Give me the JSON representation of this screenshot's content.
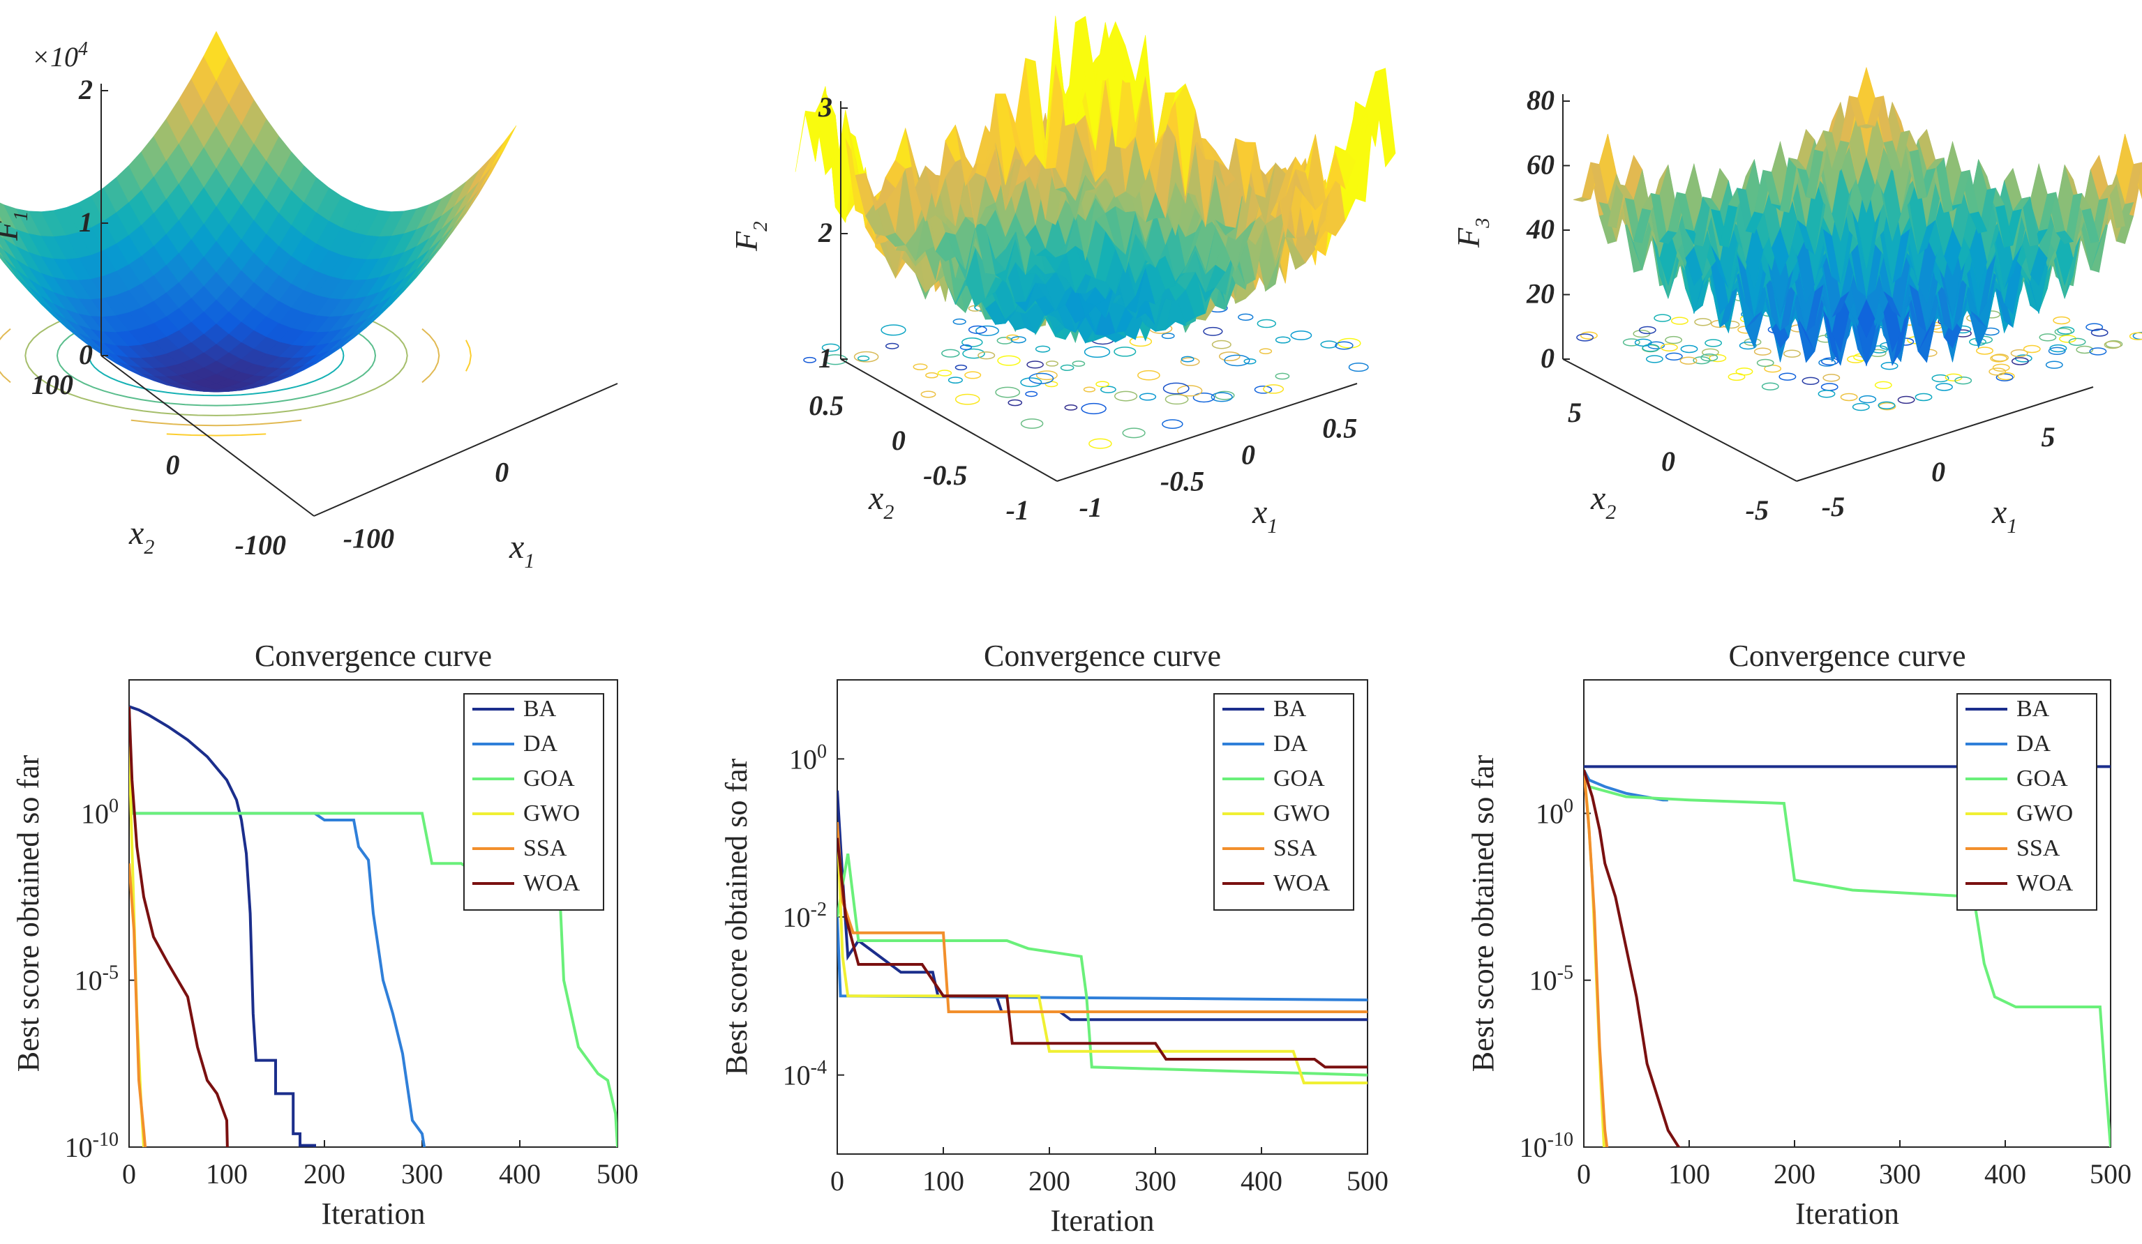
{
  "chart_data": [
    {
      "type": "surface3d",
      "panel": "top-left",
      "zlabel": "F",
      "zlabel_sub": "1",
      "xlabel": "x",
      "xlabel_sub": "1",
      "ylabel": "x",
      "ylabel_sub": "2",
      "multiplier": "×10",
      "multiplier_exp": "4",
      "zticks": [
        "0",
        "1",
        "2"
      ],
      "x1ticks": [
        "-100",
        "0"
      ],
      "x2ticks": [
        "100",
        "0",
        "-100"
      ],
      "function": "sphere"
    },
    {
      "type": "surface3d",
      "panel": "top-middle",
      "zlabel": "F",
      "zlabel_sub": "2",
      "xlabel": "x",
      "xlabel_sub": "1",
      "ylabel": "x",
      "ylabel_sub": "2",
      "zticks": [
        "1",
        "2",
        "3"
      ],
      "x1ticks": [
        "-1",
        "-0.5",
        "0",
        "0.5"
      ],
      "x2ticks": [
        "0.5",
        "0",
        "-0.5",
        "-1"
      ],
      "function": "noisy-quartic"
    },
    {
      "type": "surface3d",
      "panel": "top-right",
      "zlabel": "F",
      "zlabel_sub": "3",
      "xlabel": "x",
      "xlabel_sub": "1",
      "ylabel": "x",
      "ylabel_sub": "2",
      "zticks": [
        "0",
        "20",
        "40",
        "60",
        "80"
      ],
      "x1ticks": [
        "-5",
        "0",
        "5"
      ],
      "x2ticks": [
        "5",
        "0",
        "-5"
      ],
      "function": "rastrigin"
    },
    {
      "type": "line",
      "yscale": "log",
      "title": "Convergence curve",
      "xlabel": "Iteration",
      "ylabel": "Best score obtained so far",
      "xlim": [
        0,
        500
      ],
      "ylim_exp": [
        -10,
        4
      ],
      "xticks": [
        "0",
        "100",
        "200",
        "300",
        "400",
        "500"
      ],
      "yticks": [
        {
          "exp": -10,
          "base": "10",
          "sup": "-10"
        },
        {
          "exp": -5,
          "base": "10",
          "sup": "-5"
        },
        {
          "exp": 0,
          "base": "10",
          "sup": "0"
        }
      ],
      "legend": "top-right",
      "series": [
        {
          "name": "BA",
          "color": "#1b2e8c",
          "points": [
            [
              0,
              3.2
            ],
            [
              10,
              3.1
            ],
            [
              20,
              2.95
            ],
            [
              40,
              2.6
            ],
            [
              60,
              2.2
            ],
            [
              80,
              1.7
            ],
            [
              100,
              1.0
            ],
            [
              110,
              0.4
            ],
            [
              115,
              -0.2
            ],
            [
              120,
              -1.2
            ],
            [
              124,
              -3
            ],
            [
              127,
              -6
            ],
            [
              130,
              -7.4
            ],
            [
              150,
              -7.4
            ],
            [
              150,
              -8.4
            ],
            [
              168,
              -8.4
            ],
            [
              168,
              -9.6
            ],
            [
              175,
              -9.6
            ],
            [
              175,
              -9.95
            ],
            [
              190,
              -9.95
            ],
            [
              190,
              -10.5
            ]
          ]
        },
        {
          "name": "DA",
          "color": "#2f7fd9",
          "points": [
            [
              0,
              3.2
            ],
            [
              3,
              0
            ],
            [
              190,
              0
            ],
            [
              200,
              -0.2
            ],
            [
              230,
              -0.2
            ],
            [
              235,
              -1
            ],
            [
              245,
              -1.4
            ],
            [
              250,
              -3
            ],
            [
              260,
              -5
            ],
            [
              270,
              -6
            ],
            [
              280,
              -7.2
            ],
            [
              290,
              -9.2
            ],
            [
              300,
              -9.6
            ],
            [
              305,
              -10.5
            ]
          ]
        },
        {
          "name": "GOA",
          "color": "#6af07a",
          "points": [
            [
              0,
              3.2
            ],
            [
              3,
              0
            ],
            [
              300,
              0
            ],
            [
              310,
              -1.5
            ],
            [
              340,
              -1.5
            ],
            [
              355,
              -1.8
            ],
            [
              440,
              -1.8
            ],
            [
              445,
              -5
            ],
            [
              460,
              -7
            ],
            [
              480,
              -7.8
            ],
            [
              490,
              -8
            ],
            [
              498,
              -9
            ],
            [
              500,
              -10
            ]
          ]
        },
        {
          "name": "GWO",
          "color": "#f0f033",
          "points": [
            [
              0,
              2
            ],
            [
              4,
              -2
            ],
            [
              8,
              -6
            ],
            [
              12,
              -8.5
            ],
            [
              16,
              -10.5
            ]
          ]
        },
        {
          "name": "SSA",
          "color": "#f28f2c",
          "points": [
            [
              0,
              -1.5
            ],
            [
              5,
              -3.5
            ],
            [
              10,
              -8
            ],
            [
              15,
              -9.5
            ],
            [
              18,
              -10.5
            ]
          ]
        },
        {
          "name": "WOA",
          "color": "#7a1010",
          "points": [
            [
              0,
              3.2
            ],
            [
              3,
              1
            ],
            [
              8,
              -1
            ],
            [
              15,
              -2.5
            ],
            [
              25,
              -3.7
            ],
            [
              40,
              -4.5
            ],
            [
              60,
              -5.5
            ],
            [
              70,
              -7
            ],
            [
              80,
              -8
            ],
            [
              90,
              -8.4
            ],
            [
              100,
              -9.2
            ],
            [
              101,
              -10.5
            ]
          ]
        }
      ]
    },
    {
      "type": "line",
      "yscale": "log",
      "title": "Convergence curve",
      "xlabel": "Iteration",
      "ylabel": "Best score obtained so far",
      "xlim": [
        0,
        500
      ],
      "ylim_exp": [
        -5,
        1
      ],
      "xticks": [
        "0",
        "100",
        "200",
        "300",
        "400",
        "500"
      ],
      "yticks": [
        {
          "exp": -4,
          "base": "10",
          "sup": "-4"
        },
        {
          "exp": -2,
          "base": "10",
          "sup": "-2"
        },
        {
          "exp": 0,
          "base": "10",
          "sup": "0"
        }
      ],
      "legend": "top-right",
      "series": [
        {
          "name": "BA",
          "color": "#1b2e8c",
          "points": [
            [
              0,
              -0.4
            ],
            [
              5,
              -1.5
            ],
            [
              10,
              -2.5
            ],
            [
              20,
              -2.3
            ],
            [
              60,
              -2.7
            ],
            [
              90,
              -2.7
            ],
            [
              95,
              -3
            ],
            [
              150,
              -3
            ],
            [
              155,
              -3.2
            ],
            [
              210,
              -3.2
            ],
            [
              220,
              -3.3
            ],
            [
              500,
              -3.3
            ]
          ]
        },
        {
          "name": "DA",
          "color": "#2f7fd9",
          "points": [
            [
              0,
              -2
            ],
            [
              3,
              -3
            ],
            [
              500,
              -3.05
            ]
          ]
        },
        {
          "name": "GOA",
          "color": "#6af07a",
          "points": [
            [
              0,
              -2
            ],
            [
              10,
              -1.2
            ],
            [
              20,
              -2.3
            ],
            [
              160,
              -2.3
            ],
            [
              180,
              -2.4
            ],
            [
              230,
              -2.5
            ],
            [
              235,
              -3
            ],
            [
              240,
              -3.9
            ],
            [
              500,
              -4
            ]
          ]
        },
        {
          "name": "GWO",
          "color": "#f0f033",
          "points": [
            [
              0,
              -0.8
            ],
            [
              5,
              -2.5
            ],
            [
              10,
              -3
            ],
            [
              190,
              -3
            ],
            [
              200,
              -3.7
            ],
            [
              430,
              -3.7
            ],
            [
              440,
              -4.1
            ],
            [
              500,
              -4.1
            ]
          ]
        },
        {
          "name": "SSA",
          "color": "#f28f2c",
          "points": [
            [
              0,
              -0.8
            ],
            [
              5,
              -1.8
            ],
            [
              15,
              -2.2
            ],
            [
              100,
              -2.2
            ],
            [
              105,
              -3.2
            ],
            [
              500,
              -3.2
            ]
          ]
        },
        {
          "name": "WOA",
          "color": "#7a1010",
          "points": [
            [
              0,
              -1
            ],
            [
              8,
              -2
            ],
            [
              20,
              -2.6
            ],
            [
              80,
              -2.6
            ],
            [
              100,
              -3
            ],
            [
              160,
              -3
            ],
            [
              165,
              -3.6
            ],
            [
              300,
              -3.6
            ],
            [
              310,
              -3.8
            ],
            [
              450,
              -3.8
            ],
            [
              460,
              -3.9
            ],
            [
              500,
              -3.9
            ]
          ]
        }
      ]
    },
    {
      "type": "line",
      "yscale": "log",
      "title": "Convergence curve",
      "xlabel": "Iteration",
      "ylabel": "Best score obtained so far",
      "xlim": [
        0,
        500
      ],
      "ylim_exp": [
        -10,
        4
      ],
      "xticks": [
        "0",
        "100",
        "200",
        "300",
        "400",
        "500"
      ],
      "yticks": [
        {
          "exp": -10,
          "base": "10",
          "sup": "-10"
        },
        {
          "exp": -5,
          "base": "10",
          "sup": "-5"
        },
        {
          "exp": 0,
          "base": "10",
          "sup": "0"
        }
      ],
      "legend": "top-right",
      "series": [
        {
          "name": "BA",
          "color": "#1b2e8c",
          "points": [
            [
              0,
              1.4
            ],
            [
              500,
              1.4
            ]
          ]
        },
        {
          "name": "DA",
          "color": "#2f7fd9",
          "points": [
            [
              0,
              1.3
            ],
            [
              5,
              1.0
            ],
            [
              20,
              0.8
            ],
            [
              40,
              0.6
            ],
            [
              75,
              0.4
            ],
            [
              80,
              0.4
            ]
          ]
        },
        {
          "name": "GOA",
          "color": "#6af07a",
          "points": [
            [
              0,
              1.3
            ],
            [
              5,
              0.8
            ],
            [
              40,
              0.5
            ],
            [
              100,
              0.4
            ],
            [
              190,
              0.3
            ],
            [
              200,
              -2
            ],
            [
              255,
              -2.3
            ],
            [
              370,
              -2.5
            ],
            [
              380,
              -4.5
            ],
            [
              390,
              -5.5
            ],
            [
              410,
              -5.8
            ],
            [
              490,
              -5.8
            ],
            [
              495,
              -8
            ],
            [
              500,
              -10
            ]
          ]
        },
        {
          "name": "GWO",
          "color": "#f0f033",
          "points": [
            [
              0,
              1.3
            ],
            [
              4,
              0
            ],
            [
              8,
              -2
            ],
            [
              12,
              -5
            ],
            [
              16,
              -8
            ],
            [
              20,
              -10.5
            ]
          ]
        },
        {
          "name": "SSA",
          "color": "#f28f2c",
          "points": [
            [
              0,
              1.3
            ],
            [
              5,
              -0.5
            ],
            [
              10,
              -3
            ],
            [
              15,
              -7
            ],
            [
              20,
              -9.5
            ],
            [
              24,
              -10.5
            ]
          ]
        },
        {
          "name": "WOA",
          "color": "#7a1010",
          "points": [
            [
              0,
              1.3
            ],
            [
              8,
              0.5
            ],
            [
              15,
              -0.5
            ],
            [
              20,
              -1.5
            ],
            [
              30,
              -2.5
            ],
            [
              40,
              -4
            ],
            [
              50,
              -5.5
            ],
            [
              60,
              -7.5
            ],
            [
              70,
              -8.5
            ],
            [
              80,
              -9.5
            ],
            [
              90,
              -10
            ],
            [
              100,
              -10.2
            ],
            [
              101,
              -10.5
            ]
          ]
        }
      ]
    }
  ]
}
